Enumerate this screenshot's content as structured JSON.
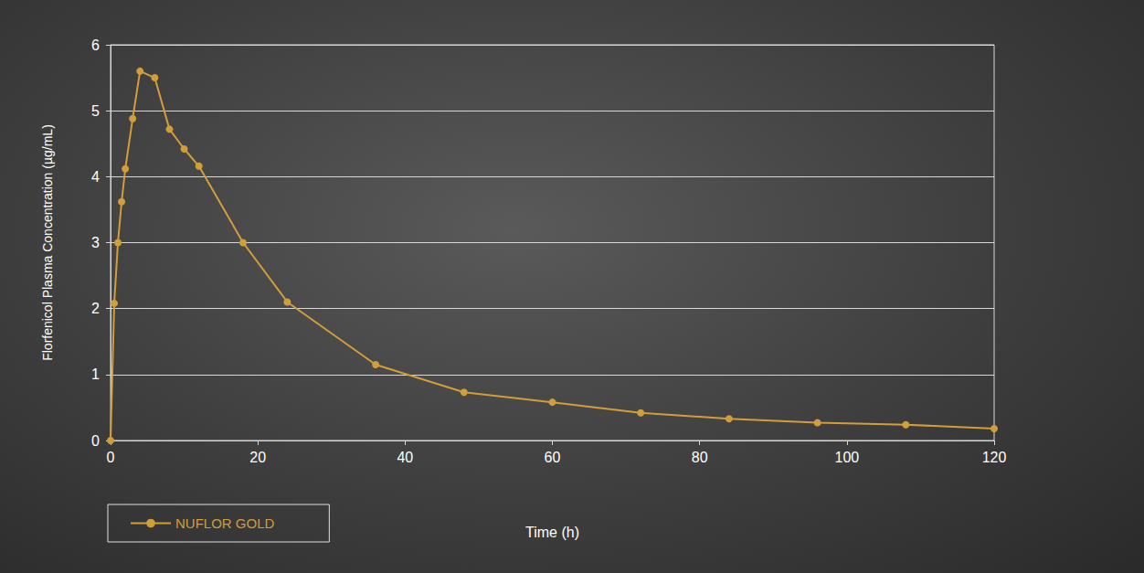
{
  "chart_data": {
    "type": "line",
    "x_label": "Time (h)",
    "y_label": "Florfenicol Plasma Concentration (µg/mL)",
    "x": [
      0,
      0.5,
      1,
      1.5,
      2,
      3,
      4,
      6,
      8,
      10,
      12,
      18,
      24,
      36,
      48,
      60,
      72,
      84,
      96,
      108,
      120
    ],
    "series": [
      {
        "name": "NUFLOR GOLD",
        "color": "#d19e3a",
        "marker": "circle",
        "values": [
          0,
          2.08,
          3.0,
          3.62,
          4.12,
          4.88,
          5.6,
          5.5,
          4.72,
          4.42,
          4.16,
          3.0,
          2.1,
          1.15,
          0.73,
          0.58,
          0.42,
          0.33,
          0.27,
          0.24,
          0.18
        ]
      }
    ],
    "xlim": [
      0,
      120
    ],
    "xticks": [
      0,
      20,
      40,
      60,
      80,
      100,
      120
    ],
    "ylim": [
      0,
      6
    ],
    "yticks": [
      0,
      1,
      2,
      3,
      4,
      5,
      6
    ],
    "grid": true,
    "legend": "bottom-left"
  }
}
